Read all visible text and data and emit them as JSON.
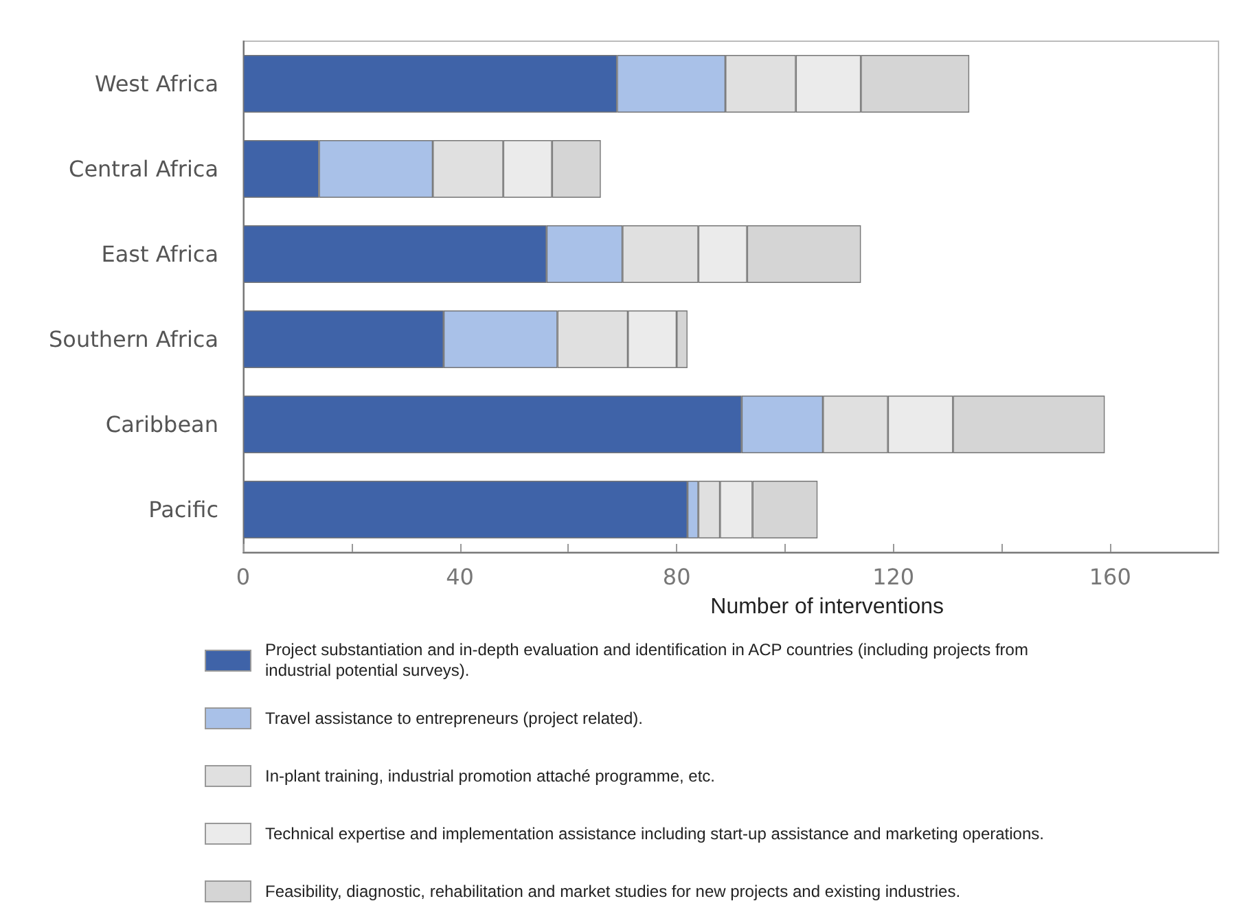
{
  "chart_data": {
    "type": "bar",
    "orientation": "horizontal",
    "stacked": true,
    "xlabel": "Number of interventions",
    "categories": [
      "West Africa",
      "Central Africa",
      "East Africa",
      "Southern Africa",
      "Caribbean",
      "Pacific"
    ],
    "series": [
      {
        "name": "Project substantiation and in-depth evaluation and identification in ACP countries (including projects from industrial potential surveys).",
        "color": "#3f63a8",
        "values": [
          69,
          14,
          56,
          37,
          92,
          82
        ]
      },
      {
        "name": "Travel assistance to entrepreneurs (project related).",
        "color": "#a9c1e8",
        "values": [
          20,
          21,
          14,
          21,
          15,
          2
        ]
      },
      {
        "name": "In-plant training, industrial promotion attaché programme, etc.",
        "color": "#e0e0e0",
        "values": [
          13,
          13,
          14,
          13,
          12,
          4
        ]
      },
      {
        "name": "Technical expertise and implementation assistance including start-up assistance and marketing operations.",
        "color": "#ebebeb",
        "values": [
          12,
          9,
          9,
          9,
          12,
          6
        ]
      },
      {
        "name": "Feasibility, diagnostic, rehabilitation and market studies for new projects and existing industries.",
        "color": "#d5d5d5",
        "values": [
          20,
          9,
          21,
          2,
          28,
          12
        ]
      }
    ],
    "xlim": [
      0,
      180
    ],
    "xticks": [
      0,
      {
        "value": 20,
        "label": null
      },
      40,
      {
        "value": 60,
        "label": null
      },
      80,
      {
        "value": 100,
        "label": null
      },
      120,
      {
        "value": 140,
        "label": null
      },
      160
    ],
    "grid": false,
    "legend": "bottom"
  }
}
